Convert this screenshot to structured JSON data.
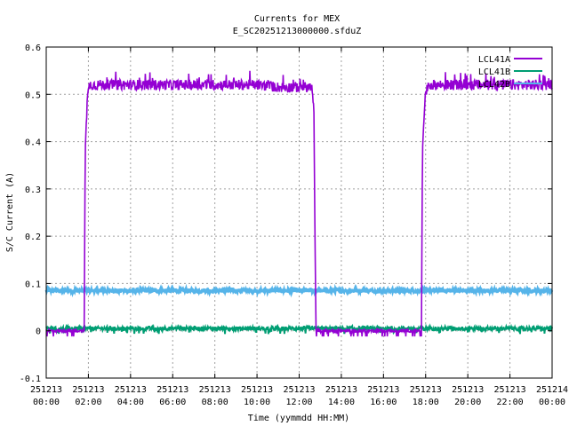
{
  "chart_data": {
    "type": "line",
    "title": "Currents for MEX",
    "subtitle": "E_SC20251213000000.sfduZ",
    "xlabel": "Time (yymmdd HH:MM)",
    "ylabel": "S/C Current (A)",
    "xlim": [
      "251213 00:00",
      "251214 00:00"
    ],
    "ylim": [
      -0.1,
      0.6
    ],
    "yticks": [
      "-0.1",
      "0",
      "0.1",
      "0.2",
      "0.3",
      "0.4",
      "0.5",
      "0.6"
    ],
    "yticks_values": [
      -0.1,
      0,
      0.1,
      0.2,
      0.3,
      0.4,
      0.5,
      0.6
    ],
    "xticks": [
      {
        "date": "251213",
        "time": "00:00",
        "hour": 0
      },
      {
        "date": "251213",
        "time": "02:00",
        "hour": 2
      },
      {
        "date": "251213",
        "time": "04:00",
        "hour": 4
      },
      {
        "date": "251213",
        "time": "06:00",
        "hour": 6
      },
      {
        "date": "251213",
        "time": "08:00",
        "hour": 8
      },
      {
        "date": "251213",
        "time": "10:00",
        "hour": 10
      },
      {
        "date": "251213",
        "time": "12:00",
        "hour": 12
      },
      {
        "date": "251213",
        "time": "14:00",
        "hour": 14
      },
      {
        "date": "251213",
        "time": "16:00",
        "hour": 16
      },
      {
        "date": "251213",
        "time": "18:00",
        "hour": 18
      },
      {
        "date": "251213",
        "time": "20:00",
        "hour": 20
      },
      {
        "date": "251213",
        "time": "22:00",
        "hour": 22
      },
      {
        "date": "251214",
        "time": "00:00",
        "hour": 24
      }
    ],
    "grid": true,
    "legend_position": "top-right",
    "series": [
      {
        "name": "LCL41A",
        "color": "#9400d3",
        "points": [
          {
            "hour": 0.0,
            "value": 0.0
          },
          {
            "hour": 1.8,
            "value": 0.0
          },
          {
            "hour": 1.85,
            "value": 0.38
          },
          {
            "hour": 1.9,
            "value": 0.44
          },
          {
            "hour": 1.95,
            "value": 0.49
          },
          {
            "hour": 2.05,
            "value": 0.52
          },
          {
            "hour": 4.0,
            "value": 0.52
          },
          {
            "hour": 6.0,
            "value": 0.52
          },
          {
            "hour": 8.0,
            "value": 0.52
          },
          {
            "hour": 10.0,
            "value": 0.52
          },
          {
            "hour": 11.0,
            "value": 0.515
          },
          {
            "hour": 12.6,
            "value": 0.515
          },
          {
            "hour": 12.7,
            "value": 0.46
          },
          {
            "hour": 12.75,
            "value": 0.2
          },
          {
            "hour": 12.8,
            "value": 0.0
          },
          {
            "hour": 17.8,
            "value": 0.0
          },
          {
            "hour": 17.85,
            "value": 0.38
          },
          {
            "hour": 17.9,
            "value": 0.43
          },
          {
            "hour": 17.95,
            "value": 0.48
          },
          {
            "hour": 18.1,
            "value": 0.52
          },
          {
            "hour": 20.0,
            "value": 0.52
          },
          {
            "hour": 22.0,
            "value": 0.52
          },
          {
            "hour": 24.0,
            "value": 0.52
          }
        ]
      },
      {
        "name": "LCL41B",
        "color": "#009e73",
        "points": [
          {
            "hour": 0.0,
            "value": 0.005
          },
          {
            "hour": 24.0,
            "value": 0.005
          }
        ]
      },
      {
        "name": "LCL42B",
        "color": "#56b4e9",
        "points": [
          {
            "hour": 0.0,
            "value": 0.085
          },
          {
            "hour": 24.0,
            "value": 0.085
          }
        ]
      }
    ]
  }
}
